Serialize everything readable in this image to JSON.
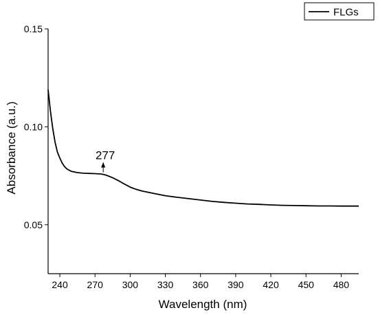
{
  "chart_data": {
    "type": "line",
    "xlabel": "Wavelength (nm)",
    "ylabel": "Absorbance (a.u.)",
    "xlim": [
      230,
      495
    ],
    "ylim": [
      0.025,
      0.15
    ],
    "x_ticks": [
      240,
      270,
      300,
      330,
      360,
      390,
      420,
      450,
      480
    ],
    "x_tick_labels": [
      "240",
      "270",
      "300",
      "330",
      "360",
      "390",
      "420",
      "450",
      "480"
    ],
    "y_ticks": [
      0.05,
      0.1,
      0.15
    ],
    "y_tick_labels": [
      "0.05",
      "0.10",
      "0.15"
    ],
    "grid": false,
    "legend_position": "top-right",
    "series": [
      {
        "name": "FLGs",
        "color": "#000000",
        "x": [
          230,
          232,
          234,
          236,
          238,
          240,
          242,
          244,
          246,
          248,
          250,
          255,
          260,
          265,
          270,
          275,
          277,
          280,
          285,
          290,
          295,
          300,
          305,
          310,
          320,
          330,
          340,
          350,
          360,
          370,
          380,
          390,
          400,
          410,
          420,
          430,
          440,
          450,
          460,
          470,
          480,
          490,
          495
        ],
        "y": [
          0.119,
          0.108,
          0.099,
          0.092,
          0.087,
          0.084,
          0.0815,
          0.0797,
          0.0785,
          0.0778,
          0.0772,
          0.0766,
          0.0763,
          0.0762,
          0.0761,
          0.0759,
          0.0757,
          0.0752,
          0.074,
          0.0725,
          0.0708,
          0.0692,
          0.0681,
          0.0672,
          0.066,
          0.0648,
          0.064,
          0.0633,
          0.0626,
          0.0619,
          0.0614,
          0.061,
          0.0606,
          0.0604,
          0.0601,
          0.0599,
          0.0598,
          0.0597,
          0.0596,
          0.0596,
          0.0595,
          0.0595,
          0.0595
        ]
      }
    ],
    "annotations": [
      {
        "text": "277",
        "x": 277,
        "y": 0.0757,
        "arrow": "up"
      }
    ]
  }
}
